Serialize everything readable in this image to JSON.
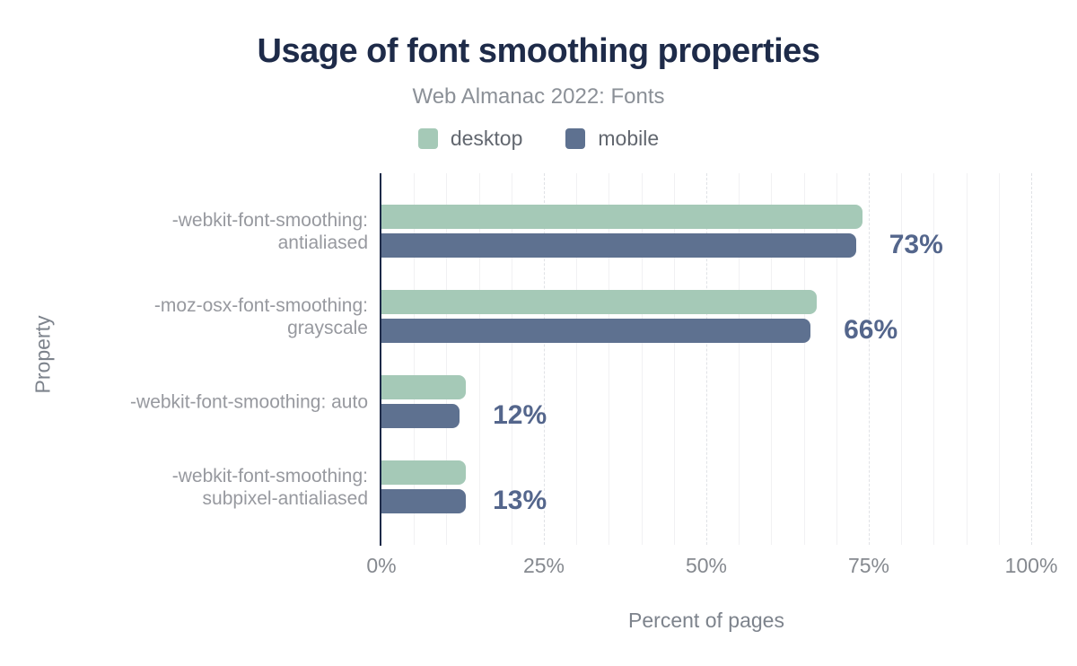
{
  "title": "Usage of font smoothing properties",
  "subtitle": "Web Almanac 2022: Fonts",
  "legend": {
    "items": [
      {
        "label": "desktop",
        "color": "#a5c9b7"
      },
      {
        "label": "mobile",
        "color": "#5e7190"
      }
    ]
  },
  "chart_data": {
    "type": "bar",
    "orientation": "horizontal",
    "title": "Usage of font smoothing properties",
    "subtitle": "Web Almanac 2022: Fonts",
    "xlabel": "Percent of pages",
    "ylabel": "Property",
    "xlim": [
      0,
      100
    ],
    "xticks": [
      {
        "value": 0,
        "label": "0%"
      },
      {
        "value": 25,
        "label": "25%"
      },
      {
        "value": 50,
        "label": "50%"
      },
      {
        "value": 75,
        "label": "75%"
      },
      {
        "value": 100,
        "label": "100%"
      }
    ],
    "grid": {
      "minor_step": 5,
      "major_step": 25,
      "major_style": "dashed"
    },
    "legend_position": "top",
    "categories": [
      "-webkit-font-smoothing: antialiased",
      "-moz-osx-font-smoothing: grayscale",
      "-webkit-font-smoothing: auto",
      "-webkit-font-smoothing: subpixel-antialiased"
    ],
    "category_label_lines": [
      [
        "-webkit-font-smoothing:",
        "antialiased"
      ],
      [
        "-moz-osx-font-smoothing:",
        "grayscale"
      ],
      [
        "-webkit-font-smoothing: auto"
      ],
      [
        "-webkit-font-smoothing:",
        "subpixel-antialiased"
      ]
    ],
    "series": [
      {
        "name": "desktop",
        "color": "#a5c9b7",
        "values": [
          74,
          67,
          13,
          13
        ]
      },
      {
        "name": "mobile",
        "color": "#5e7190",
        "values": [
          73,
          66,
          12,
          13
        ]
      }
    ],
    "value_labels": [
      "73%",
      "66%",
      "12%",
      "13%"
    ]
  },
  "colors": {
    "title": "#1e2b49",
    "subtitle": "#8b9097",
    "legend_label": "#62676f",
    "axis_line": "#1e2b49",
    "category_label": "#97999f",
    "tick_label": "#85898f",
    "axis_title": "#7d838c",
    "value_label": "#54668c",
    "grid_minor": "#f1f1f3",
    "grid_major": "#e0e2e6",
    "background": "#ffffff"
  }
}
